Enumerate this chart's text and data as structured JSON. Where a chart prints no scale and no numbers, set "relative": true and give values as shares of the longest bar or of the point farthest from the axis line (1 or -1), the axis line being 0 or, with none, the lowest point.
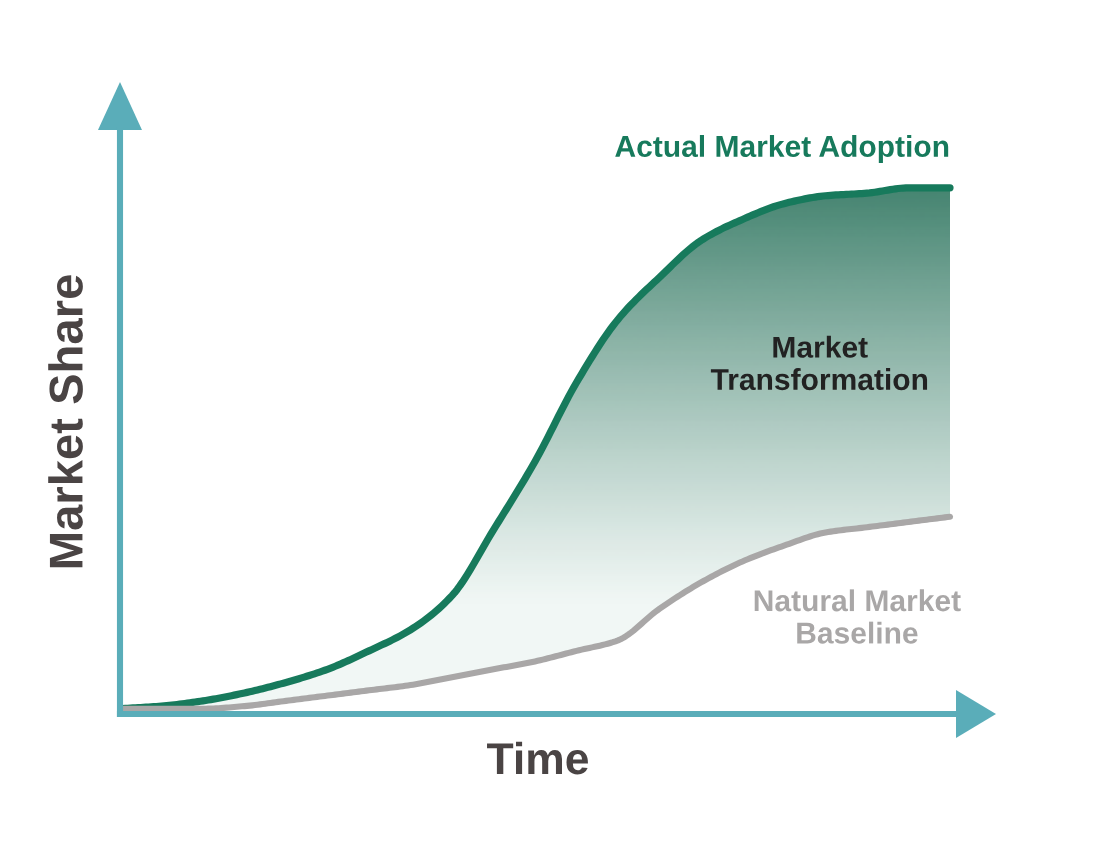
{
  "chart_data": {
    "type": "line",
    "relative": true,
    "xlabel": "Time",
    "ylabel": "Market Share",
    "categories": [
      null,
      null,
      null,
      null,
      null,
      null,
      null,
      null,
      null,
      null,
      null,
      null,
      null,
      null,
      null,
      null,
      null,
      null,
      null,
      null,
      null
    ],
    "series": [
      {
        "name": "Actual Market Adoption",
        "color": "#177a5c",
        "values": [
          0.01,
          0.015,
          0.025,
          0.04,
          0.06,
          0.085,
          0.12,
          0.16,
          0.225,
          0.35,
          0.48,
          0.63,
          0.75,
          0.83,
          0.9,
          0.94,
          0.97,
          0.985,
          0.99,
          1.0,
          1.0
        ],
        "lower": [
          0.01,
          0.01,
          0.01,
          0.015,
          0.025,
          0.035,
          0.045,
          0.055,
          0.07,
          0.085,
          0.1,
          0.12,
          0.14,
          0.2,
          0.25,
          0.29,
          0.32,
          0.345,
          0.355,
          0.365,
          0.375
        ],
        "upper": [
          0.01,
          0.015,
          0.025,
          0.04,
          0.06,
          0.085,
          0.12,
          0.16,
          0.225,
          0.35,
          0.48,
          0.63,
          0.75,
          0.83,
          0.9,
          0.94,
          0.97,
          0.985,
          0.99,
          1.0,
          1.0
        ]
      },
      {
        "name": "Natural Market\nBaseline",
        "color": "#a9a7a7",
        "values": [
          0.01,
          0.01,
          0.01,
          0.015,
          0.025,
          0.035,
          0.045,
          0.055,
          0.07,
          0.085,
          0.1,
          0.12,
          0.14,
          0.2,
          0.25,
          0.29,
          0.32,
          0.345,
          0.355,
          0.365,
          0.375
        ]
      }
    ],
    "annotations": [
      "Market\nTransformation"
    ]
  }
}
